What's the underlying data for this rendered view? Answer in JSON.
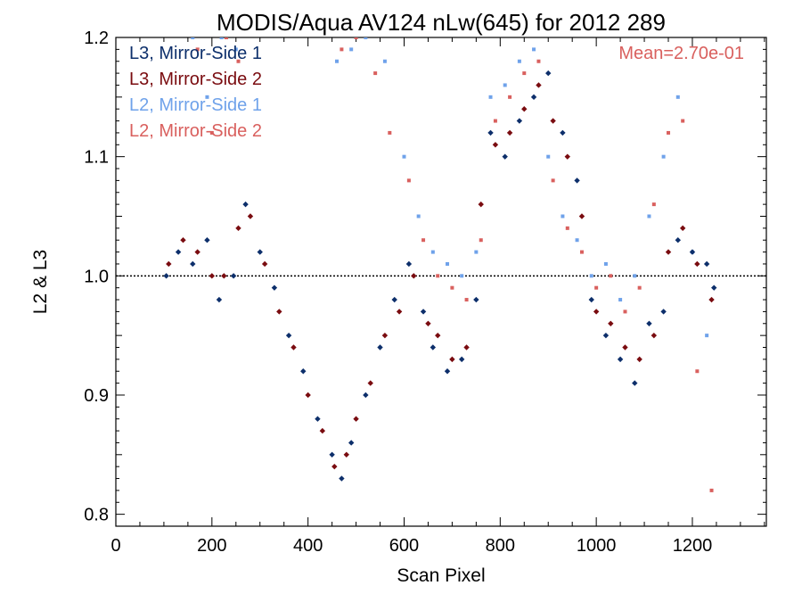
{
  "chart_data": {
    "type": "scatter",
    "title": "MODIS/Aqua AV124 nLw(645) for 2012 289",
    "xlabel": "Scan Pixel",
    "ylabel": "L2 & L3",
    "xlim": [
      0,
      1354
    ],
    "ylim": [
      0.79,
      1.2
    ],
    "xticks": [
      0,
      200,
      400,
      600,
      800,
      1000,
      1200
    ],
    "xtick_labels": [
      "0",
      "200",
      "400",
      "600",
      "800",
      "1000",
      "1200"
    ],
    "yticks": [
      0.8,
      0.9,
      1.0,
      1.1,
      1.2
    ],
    "ytick_labels": [
      "0.8",
      "0.9",
      "1.0",
      "1.1",
      "1.2"
    ],
    "reference_line": 1.0,
    "annotation": "Mean=2.70e-01",
    "annotation_color": "#d9605e",
    "legend_position": "top-left",
    "grid": false,
    "series": [
      {
        "name": "L3, Mirror-Side 1",
        "color": "#0d2f6b",
        "x": [
          105,
          130,
          160,
          190,
          215,
          245,
          270,
          300,
          330,
          360,
          390,
          420,
          450,
          470,
          490,
          520,
          550,
          580,
          610,
          640,
          660,
          690,
          720,
          750,
          780,
          810,
          840,
          870,
          900,
          930,
          960,
          990,
          1020,
          1050,
          1080,
          1110,
          1140,
          1170,
          1200,
          1230,
          1245
        ],
        "y": [
          1.0,
          1.02,
          1.01,
          1.03,
          0.98,
          1.0,
          1.06,
          1.02,
          0.99,
          0.95,
          0.92,
          0.88,
          0.85,
          0.83,
          0.86,
          0.9,
          0.94,
          0.98,
          1.01,
          0.97,
          0.94,
          0.92,
          0.93,
          0.98,
          1.12,
          1.1,
          1.13,
          1.15,
          1.17,
          1.12,
          1.08,
          0.98,
          0.95,
          0.93,
          0.91,
          0.96,
          0.97,
          1.03,
          1.02,
          1.01,
          0.99
        ]
      },
      {
        "name": "L3, Mirror-Side 2",
        "color": "#7a0c10",
        "x": [
          110,
          140,
          170,
          200,
          225,
          255,
          280,
          310,
          340,
          370,
          400,
          430,
          455,
          480,
          500,
          530,
          560,
          590,
          620,
          650,
          670,
          700,
          730,
          760,
          790,
          820,
          850,
          880,
          910,
          940,
          970,
          1000,
          1030,
          1060,
          1090,
          1120,
          1150,
          1180,
          1210,
          1240
        ],
        "y": [
          1.01,
          1.03,
          1.02,
          1.0,
          1.0,
          1.04,
          1.05,
          1.01,
          0.97,
          0.94,
          0.9,
          0.87,
          0.84,
          0.85,
          0.88,
          0.91,
          0.95,
          0.97,
          1.0,
          0.96,
          0.95,
          0.93,
          0.94,
          1.06,
          1.11,
          1.12,
          1.14,
          1.16,
          1.13,
          1.1,
          1.05,
          0.97,
          0.96,
          0.94,
          0.93,
          0.95,
          1.02,
          1.04,
          1.01,
          0.98
        ]
      },
      {
        "name": "L2, Mirror-Side 1",
        "color": "#6fa2ea",
        "x": [
          160,
          190,
          220,
          250,
          460,
          490,
          520,
          560,
          600,
          630,
          660,
          690,
          720,
          750,
          780,
          810,
          840,
          870,
          900,
          930,
          960,
          990,
          1020,
          1050,
          1080,
          1110,
          1140,
          1170,
          1200,
          1230
        ],
        "y": [
          1.2,
          1.15,
          1.2,
          1.19,
          1.18,
          1.19,
          1.2,
          1.18,
          1.1,
          1.05,
          1.02,
          1.01,
          1.0,
          1.02,
          1.15,
          1.16,
          1.18,
          1.19,
          1.1,
          1.05,
          1.03,
          1.0,
          1.01,
          0.98,
          1.0,
          1.05,
          1.1,
          1.15,
          1.02,
          0.95
        ]
      },
      {
        "name": "L2, Mirror-Side 2",
        "color": "#d9605e",
        "x": [
          170,
          200,
          230,
          255,
          470,
          500,
          540,
          570,
          610,
          640,
          670,
          700,
          730,
          760,
          790,
          820,
          850,
          880,
          910,
          940,
          970,
          1000,
          1030,
          1060,
          1090,
          1120,
          1150,
          1180,
          1210,
          1240
        ],
        "y": [
          1.19,
          1.12,
          1.2,
          1.18,
          1.19,
          1.2,
          1.17,
          1.12,
          1.08,
          1.03,
          1.0,
          0.99,
          0.98,
          1.03,
          1.13,
          1.15,
          1.17,
          1.18,
          1.08,
          1.04,
          1.02,
          0.99,
          1.0,
          0.97,
          0.99,
          1.06,
          1.12,
          1.13,
          0.92,
          0.82
        ]
      }
    ]
  }
}
